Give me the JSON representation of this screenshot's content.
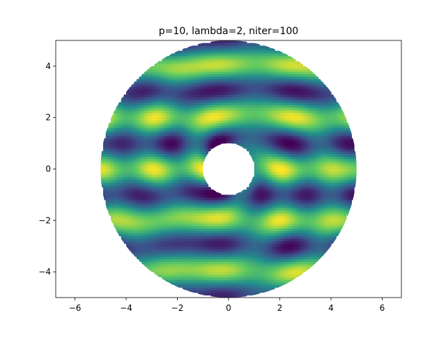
{
  "chart_data": {
    "type": "heatmap",
    "title": "p=10, lambda=2, niter=100",
    "xlabel": "",
    "ylabel": "",
    "xlim": [
      -6.75,
      6.75
    ],
    "ylim": [
      -5,
      5
    ],
    "x_ticks": [
      -6,
      -4,
      -2,
      0,
      2,
      4,
      6
    ],
    "y_ticks": [
      -4,
      -2,
      0,
      2,
      4
    ],
    "x_tick_labels": [
      "−6",
      "−4",
      "−2",
      "0",
      "2",
      "4",
      "6"
    ],
    "y_tick_labels": [
      "−4",
      "−2",
      "0",
      "2",
      "4"
    ],
    "domain": {
      "shape": "annulus",
      "center": [
        0,
        0
      ],
      "inner_radius": 1,
      "outer_radius": 5
    },
    "field": {
      "description_free": true,
      "wavelength": 2,
      "wave_direction": "vertical (standing bands along y)",
      "scatterer_radius": 1
    },
    "colormap": "viridis",
    "colors": {
      "low": "#440154",
      "mid": "#21918c",
      "high": "#fde725"
    },
    "grid": false,
    "legend": "none"
  }
}
